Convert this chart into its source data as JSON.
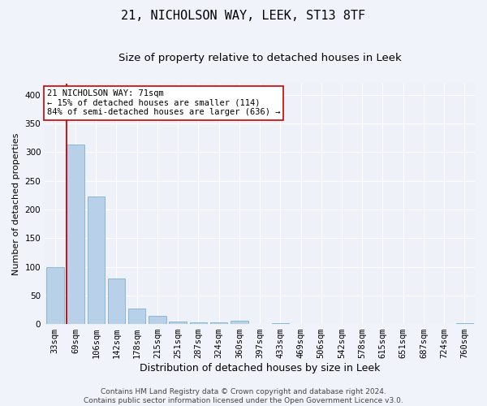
{
  "title": "21, NICHOLSON WAY, LEEK, ST13 8TF",
  "subtitle": "Size of property relative to detached houses in Leek",
  "xlabel": "Distribution of detached houses by size in Leek",
  "ylabel": "Number of detached properties",
  "categories": [
    "33sqm",
    "69sqm",
    "106sqm",
    "142sqm",
    "178sqm",
    "215sqm",
    "251sqm",
    "287sqm",
    "324sqm",
    "360sqm",
    "397sqm",
    "433sqm",
    "469sqm",
    "506sqm",
    "542sqm",
    "578sqm",
    "615sqm",
    "651sqm",
    "687sqm",
    "724sqm",
    "760sqm"
  ],
  "values": [
    99,
    313,
    222,
    80,
    27,
    14,
    5,
    3,
    3,
    6,
    0,
    2,
    0,
    0,
    0,
    0,
    0,
    0,
    0,
    0,
    2
  ],
  "bar_color": "#b8d0e8",
  "bar_edge_color": "#7aafd4",
  "vline_color": "#cc0000",
  "annotation_text": "21 NICHOLSON WAY: 71sqm\n← 15% of detached houses are smaller (114)\n84% of semi-detached houses are larger (636) →",
  "annotation_box_facecolor": "#ffffff",
  "annotation_box_edgecolor": "#cc0000",
  "ylim": [
    0,
    420
  ],
  "yticks": [
    0,
    50,
    100,
    150,
    200,
    250,
    300,
    350,
    400
  ],
  "fig_facecolor": "#f0f4fa",
  "plot_facecolor": "#eef2f8",
  "grid_color": "#ffffff",
  "footer": "Contains HM Land Registry data © Crown copyright and database right 2024.\nContains public sector information licensed under the Open Government Licence v3.0.",
  "title_fontsize": 11,
  "subtitle_fontsize": 9.5,
  "xlabel_fontsize": 9,
  "ylabel_fontsize": 8,
  "tick_fontsize": 7.5,
  "annotation_fontsize": 7.5,
  "footer_fontsize": 6.5,
  "vline_x_index": 1
}
